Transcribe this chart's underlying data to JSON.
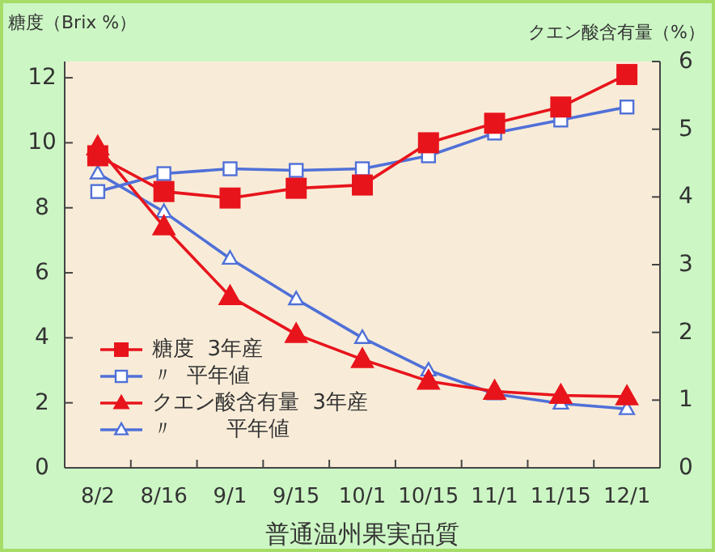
{
  "chart_data": {
    "type": "line",
    "xlabel": "普通温州果実品質",
    "ylabel": "糖度（Brix %）",
    "y2label": "クエン酸含有量（%）",
    "categories": [
      "8/2",
      "8/16",
      "9/1",
      "9/15",
      "10/1",
      "10/15",
      "11/1",
      "11/15",
      "12/1"
    ],
    "ylim": [
      0,
      12.5
    ],
    "yticks": [
      0,
      2,
      4,
      6,
      8,
      10,
      12
    ],
    "y2lim": [
      0,
      6
    ],
    "y2ticks": [
      0,
      1,
      2,
      3,
      4,
      5,
      6
    ],
    "grid": false,
    "legend": "bottom left",
    "line_style": "solid",
    "series": [
      {
        "name": "糖度  3年産",
        "color": "#e8141c",
        "marker": "square",
        "values": [
          9.6,
          8.5,
          8.3,
          8.6,
          8.7,
          10.0,
          10.6,
          11.1,
          12.1
        ]
      },
      {
        "name": "〃  平年値",
        "color": "#5070d8",
        "marker": "square",
        "values": [
          8.5,
          9.05,
          9.2,
          9.15,
          9.2,
          9.6,
          10.3,
          10.7,
          11.1
        ]
      },
      {
        "name": "クエン酸含有量  3年産",
        "color": "#e8141c",
        "marker": "triangle",
        "axis": "y2",
        "values": [
          4.74,
          3.56,
          2.53,
          1.97,
          1.6,
          1.28,
          1.13,
          1.07,
          1.05
        ]
      },
      {
        "name": "〃        平年値",
        "color": "#5070d8",
        "marker": "triangle",
        "axis": "y2",
        "values": [
          4.35,
          3.78,
          3.09,
          2.49,
          1.92,
          1.44,
          1.09,
          0.95,
          0.87
        ]
      }
    ]
  }
}
